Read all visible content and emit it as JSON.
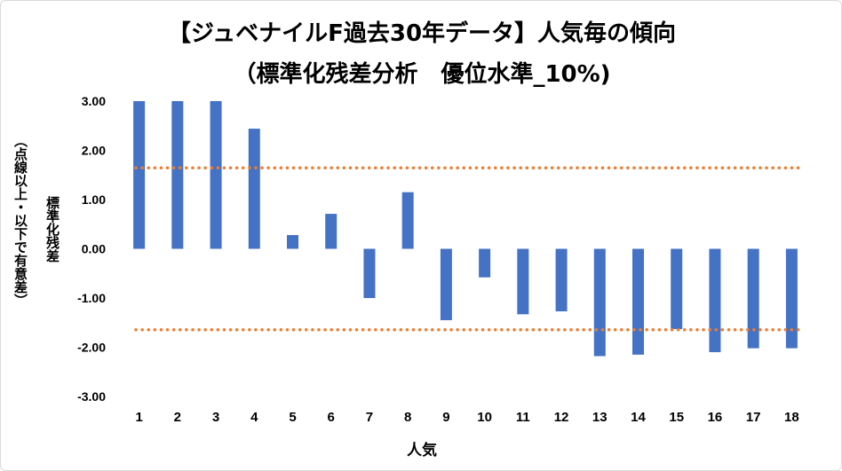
{
  "chart_data": {
    "type": "bar",
    "title": "【ジュベナイルF過去30年データ】人気毎の傾向",
    "subtitle": "（標準化残差分析　優位水準_10%)",
    "xlabel": "人気",
    "ylabel": "標準化残差",
    "ylabel_note": "（点線以上・以下で有意差）",
    "ylim": [
      -3.0,
      3.0
    ],
    "yticks": [
      "3.00",
      "2.00",
      "1.00",
      "0.00",
      "-1.00",
      "-2.00",
      "-3.00"
    ],
    "categories": [
      "1",
      "2",
      "3",
      "4",
      "5",
      "6",
      "7",
      "8",
      "9",
      "10",
      "11",
      "12",
      "13",
      "14",
      "15",
      "16",
      "17",
      "18"
    ],
    "values": [
      3.0,
      3.0,
      3.0,
      2.44,
      0.28,
      0.71,
      -1.0,
      1.15,
      -1.45,
      -0.58,
      -1.33,
      -1.27,
      -2.18,
      -2.15,
      -1.63,
      -2.1,
      -2.02,
      -2.02
    ],
    "reference_lines": [
      1.645,
      -1.645
    ],
    "colors": {
      "bar": "#4472c4",
      "reference": "#ed7d31"
    },
    "grid": false,
    "legend": "none"
  }
}
